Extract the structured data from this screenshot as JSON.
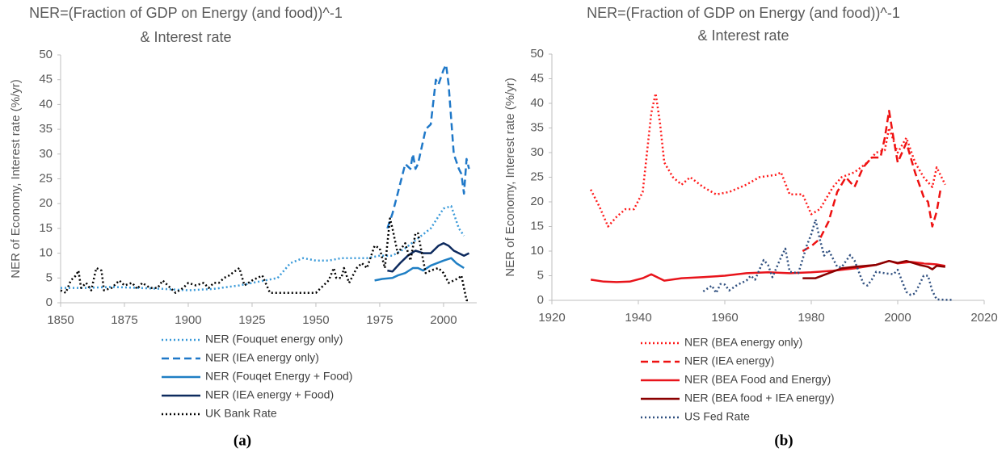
{
  "chart_data": [
    {
      "type": "line",
      "title": "NER=(Fraction of GDP on Energy (and food))^-1",
      "subtitle": "& Interest rate",
      "ylabel": "NER of Economy, Interest rate (%/yr)",
      "caption": "(a)",
      "xlim": [
        1850,
        2013
      ],
      "xticks": [
        1850,
        1875,
        1900,
        1925,
        1950,
        1975,
        2000
      ],
      "ylim": [
        0,
        50
      ],
      "yticks": [
        0,
        5,
        10,
        15,
        20,
        25,
        30,
        35,
        40,
        45,
        50
      ],
      "grid": false,
      "series": [
        {
          "name": "NER (Fouquet energy only)",
          "color": "#3a9ad9",
          "dash": "dotted",
          "x": [
            1850,
            1860,
            1870,
            1880,
            1890,
            1900,
            1910,
            1920,
            1930,
            1935,
            1940,
            1945,
            1950,
            1955,
            1960,
            1965,
            1970,
            1975,
            1980,
            1985,
            1990,
            1995,
            2000,
            2003,
            2006,
            2008
          ],
          "values": [
            3,
            3,
            3.2,
            3,
            2.8,
            2.5,
            2.8,
            3.5,
            4.5,
            5,
            8,
            9,
            8.5,
            8.5,
            9,
            9,
            9,
            9.5,
            9.5,
            11,
            13,
            15,
            19,
            19.5,
            15,
            13.5
          ]
        },
        {
          "name": "NER (IEA energy only)",
          "color": "#1f78c8",
          "dash": "dashed",
          "x": [
            1978,
            1980,
            1982,
            1985,
            1987,
            1988,
            1989,
            1990,
            1993,
            1995,
            1997,
            1998,
            2000,
            2001,
            2002,
            2004,
            2006,
            2007,
            2008,
            2009,
            2010
          ],
          "values": [
            15,
            18,
            22,
            28,
            27,
            30,
            27,
            28,
            35,
            36,
            45,
            44,
            47,
            48,
            44,
            30,
            27,
            26,
            22,
            29,
            27
          ]
        },
        {
          "name": "NER (Fouqet Energy + Food)",
          "color": "#1f7fc4",
          "dash": "solid",
          "x": [
            1973,
            1976,
            1980,
            1982,
            1985,
            1988,
            1990,
            1992,
            1995,
            2000,
            2003,
            2005,
            2008
          ],
          "values": [
            4.5,
            4.8,
            5,
            5.5,
            6,
            7,
            7,
            6.5,
            7.5,
            8.5,
            9,
            8,
            7
          ]
        },
        {
          "name": "NER (IEA energy + Food)",
          "color": "#0d2a5e",
          "dash": "solid",
          "x": [
            1978,
            1980,
            1983,
            1986,
            1989,
            1992,
            1995,
            1998,
            2000,
            2002,
            2004,
            2006,
            2008,
            2010
          ],
          "values": [
            6.5,
            6.3,
            8,
            9.5,
            10.5,
            10,
            10,
            11.5,
            12,
            11.5,
            10.5,
            10,
            9.5,
            10
          ]
        },
        {
          "name": "UK Bank Rate",
          "color": "#000000",
          "dash": "dotted",
          "x": [
            1850,
            1852,
            1854,
            1856,
            1857,
            1858,
            1860,
            1862,
            1864,
            1866,
            1867,
            1870,
            1873,
            1875,
            1878,
            1880,
            1882,
            1885,
            1888,
            1890,
            1893,
            1895,
            1898,
            1900,
            1903,
            1906,
            1908,
            1910,
            1912,
            1914,
            1916,
            1920,
            1922,
            1925,
            1929,
            1932,
            1935,
            1940,
            1945,
            1950,
            1951,
            1955,
            1957,
            1958,
            1960,
            1961,
            1963,
            1966,
            1968,
            1970,
            1973,
            1975,
            1977,
            1979,
            1980,
            1982,
            1985,
            1987,
            1989,
            1990,
            1993,
            1995,
            1998,
            2000,
            2002,
            2004,
            2006,
            2007,
            2009,
            2010
          ],
          "values": [
            2.5,
            2,
            4.5,
            5.5,
            6.5,
            3,
            4,
            2.5,
            7,
            6.5,
            2.5,
            3,
            4.5,
            3.5,
            4,
            2.8,
            4,
            3,
            3,
            4.5,
            3,
            2,
            3,
            4,
            3.5,
            4,
            3,
            4,
            4,
            5,
            5.5,
            7,
            3.5,
            4.5,
            5.5,
            2,
            2,
            2,
            2,
            2,
            2.5,
            4.5,
            7,
            5,
            5,
            7,
            4,
            7,
            8,
            7,
            11.5,
            11,
            7,
            17,
            15,
            10,
            12,
            8.5,
            14,
            14,
            6,
            6.5,
            7,
            6,
            4,
            4.5,
            5,
            5.5,
            0.5,
            0.5
          ]
        }
      ]
    },
    {
      "type": "line",
      "title": "NER=(Fraction of GDP on Energy (and food))^-1",
      "subtitle": "& Interest rate",
      "ylabel": "NER of Economy, Interest rate (%/yr)",
      "caption": "(b)",
      "xlim": [
        1920,
        2020
      ],
      "xticks": [
        1920,
        1940,
        1960,
        1980,
        2000,
        2020
      ],
      "ylim": [
        0,
        50
      ],
      "yticks": [
        0,
        5,
        10,
        15,
        20,
        25,
        30,
        35,
        40,
        45,
        50
      ],
      "grid": false,
      "series": [
        {
          "name": "NER (BEA energy only)",
          "color": "#ff1a1a",
          "dash": "dotted",
          "x": [
            1929,
            1931,
            1933,
            1935,
            1937,
            1939,
            1941,
            1943,
            1944,
            1945,
            1946,
            1948,
            1950,
            1952,
            1955,
            1958,
            1961,
            1965,
            1968,
            1972,
            1973,
            1975,
            1978,
            1980,
            1982,
            1985,
            1987,
            1990,
            1993,
            1995,
            1997,
            1998,
            2000,
            2002,
            2004,
            2006,
            2008,
            2009,
            2011
          ],
          "values": [
            22.5,
            19,
            15,
            17,
            18.5,
            18.5,
            22,
            38,
            42,
            36,
            28,
            25,
            23.5,
            25,
            23,
            21.5,
            22,
            23.5,
            25,
            25.5,
            26,
            21.5,
            21.5,
            17.5,
            18.5,
            23,
            25,
            26,
            28,
            30,
            30.5,
            35,
            30,
            33,
            28,
            25,
            23,
            27,
            23.5
          ]
        },
        {
          "name": "NER (IEA energy)",
          "color": "#ee1111",
          "dash": "dashed",
          "x": [
            1978,
            1980,
            1982,
            1984,
            1986,
            1988,
            1990,
            1992,
            1994,
            1996,
            1997,
            1998,
            1999,
            2000,
            2002,
            2004,
            2006,
            2007,
            2008,
            2009,
            2010
          ],
          "values": [
            10,
            11,
            12.5,
            16,
            22,
            25,
            23,
            27,
            29,
            29,
            33,
            38.5,
            33,
            28,
            32,
            26,
            21,
            20,
            15,
            18,
            23
          ]
        },
        {
          "name": "NER (BEA Food and Energy)",
          "color": "#e8141b",
          "dash": "solid",
          "x": [
            1929,
            1932,
            1935,
            1938,
            1941,
            1943,
            1946,
            1950,
            1955,
            1960,
            1965,
            1970,
            1975,
            1980,
            1985,
            1990,
            1995,
            1998,
            2000,
            2003,
            2006,
            2009,
            2011
          ],
          "values": [
            4.2,
            3.8,
            3.7,
            3.8,
            4.5,
            5.3,
            4,
            4.5,
            4.7,
            5,
            5.5,
            5.7,
            5.5,
            5.7,
            6,
            6.5,
            7.2,
            8,
            7.5,
            7.8,
            7.5,
            7.3,
            7
          ]
        },
        {
          "name": "NER (BEA food + IEA energy)",
          "color": "#8b0000",
          "dash": "solid",
          "x": [
            1978,
            1981,
            1984,
            1987,
            1990,
            1995,
            1998,
            2000,
            2002,
            2005,
            2007,
            2008,
            2009,
            2011
          ],
          "values": [
            4.5,
            4.5,
            5.5,
            6.5,
            6.8,
            7.2,
            8,
            7.6,
            8,
            7.2,
            6.8,
            6.3,
            7,
            6.8
          ]
        },
        {
          "name": "US Fed Rate",
          "color": "#2f4f7f",
          "dash": "dotted",
          "x": [
            1955,
            1957,
            1958,
            1959,
            1960,
            1961,
            1963,
            1965,
            1966,
            1967,
            1969,
            1970,
            1971,
            1973,
            1974,
            1975,
            1977,
            1979,
            1980,
            1981,
            1982,
            1983,
            1984,
            1986,
            1987,
            1989,
            1990,
            1992,
            1993,
            1994,
            1995,
            1997,
            1999,
            2000,
            2001,
            2002,
            2003,
            2004,
            2005,
            2006,
            2007,
            2008,
            2009,
            2011,
            2013
          ],
          "values": [
            1.8,
            3,
            1.5,
            3.3,
            3.2,
            2,
            3.2,
            4,
            5,
            4.2,
            8.2,
            7.2,
            4.7,
            8.7,
            10.5,
            5.8,
            5.5,
            11.2,
            13.4,
            16.4,
            12.3,
            9.1,
            10.2,
            6.8,
            6.7,
            9.2,
            8.1,
            3.5,
            3,
            4.2,
            5.8,
            5.5,
            5.3,
            6.2,
            3.9,
            1.7,
            1.1,
            1.4,
            3.2,
            5,
            5,
            1.9,
            0.2,
            0.1,
            0.1
          ]
        }
      ]
    }
  ]
}
